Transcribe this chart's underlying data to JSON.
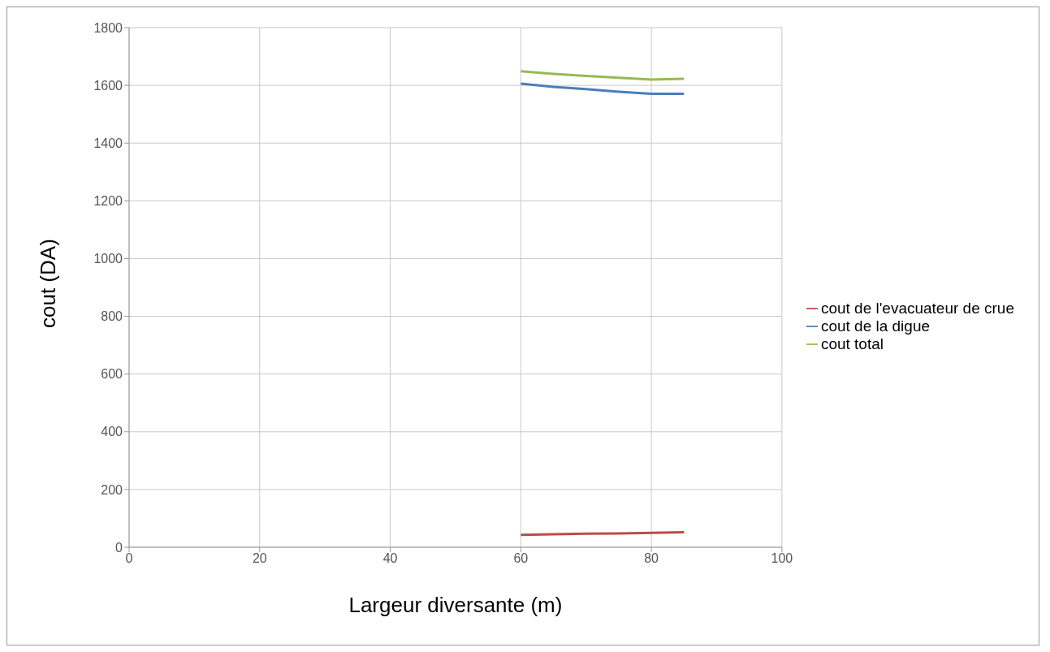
{
  "chart_data": {
    "type": "line",
    "xlabel": "Largeur diversante (m)",
    "ylabel": "cout (DA)",
    "x": [
      60,
      65,
      70,
      75,
      80,
      85
    ],
    "series": [
      {
        "name": "cout de la digue",
        "color": "#4a7ebb",
        "values": [
          1606,
          1595,
          1587,
          1578,
          1571,
          1571
        ]
      },
      {
        "name": "cout de l'evacuateur de crue",
        "color": "#be4b48",
        "values": [
          43,
          45,
          47,
          48,
          50,
          52
        ]
      },
      {
        "name": "cout total",
        "color": "#98b954",
        "values": [
          1649,
          1640,
          1633,
          1626,
          1620,
          1623
        ]
      }
    ],
    "xlim": [
      0,
      100
    ],
    "xticks": [
      0,
      20,
      40,
      60,
      80,
      100
    ],
    "ylim": [
      0,
      1800
    ],
    "yticks": [
      0,
      200,
      400,
      600,
      800,
      1000,
      1200,
      1400,
      1600,
      1800
    ],
    "grid": true,
    "legend": "right",
    "marker": "none",
    "line_style": "solid"
  }
}
